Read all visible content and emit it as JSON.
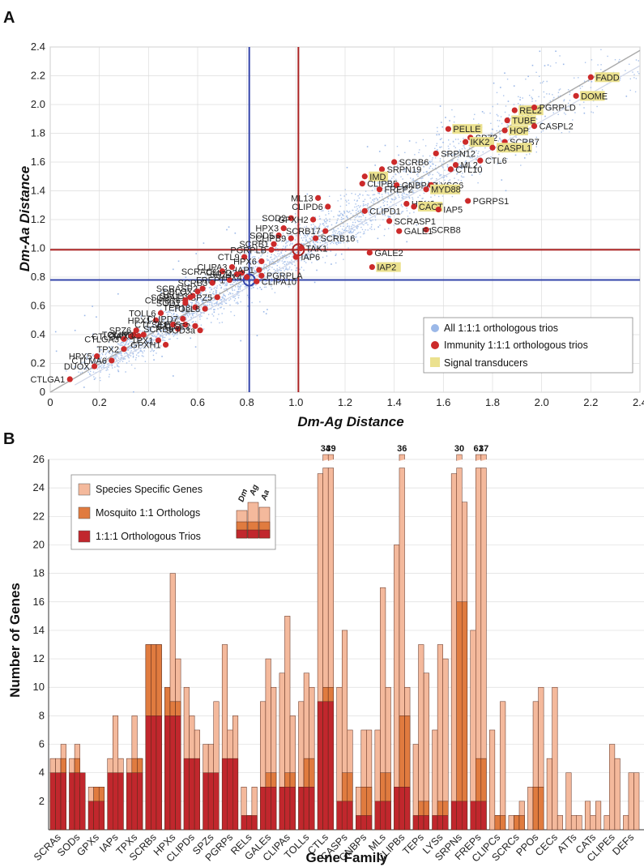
{
  "panels": {
    "a_label": "A",
    "b_label": "B"
  },
  "chart_data": [
    {
      "type": "scatter",
      "title": "",
      "xlabel": "Dm-Ag Distance",
      "ylabel": "Dm-Aa Distance",
      "xlim": [
        0,
        2.4
      ],
      "ylim": [
        0,
        2.4
      ],
      "xticks": [
        "0",
        "0.2",
        "0.4",
        "0.6",
        "0.8",
        "1.0",
        "1.2",
        "1.4",
        "1.6",
        "1.8",
        "2.0",
        "2.2",
        "2.4"
      ],
      "yticks": [
        "0",
        "0.2",
        "0.4",
        "0.6",
        "0.8",
        "1.0",
        "1.2",
        "1.4",
        "1.6",
        "1.8",
        "2.0",
        "2.2",
        "2.4"
      ],
      "grid": true,
      "legend_position": "bottom-right",
      "legend": [
        {
          "label": "All 1:1:1 orthologous trios",
          "color": "#9bb8e8"
        },
        {
          "label": "Immunity 1:1:1 orthologous trios",
          "color": "#cc2a2a"
        },
        {
          "label": "Signal transducers",
          "color": "#ebe18e"
        }
      ],
      "reference_lines": [
        {
          "axis": "x",
          "value": 0.81,
          "color": "#3344aa"
        },
        {
          "axis": "y",
          "value": 0.78,
          "color": "#3344aa"
        },
        {
          "axis": "x",
          "value": 1.01,
          "color": "#aa2222"
        },
        {
          "axis": "y",
          "value": 0.99,
          "color": "#aa2222"
        }
      ],
      "median_markers": [
        {
          "x": 0.81,
          "y": 0.78,
          "color": "#3344aa"
        },
        {
          "x": 1.01,
          "y": 0.99,
          "color": "#aa2222"
        }
      ],
      "points": [
        {
          "label": "FADD",
          "x": 2.2,
          "y": 2.19,
          "signal": true
        },
        {
          "label": "DOME",
          "x": 2.14,
          "y": 2.06,
          "signal": true
        },
        {
          "label": "REL2",
          "x": 1.89,
          "y": 1.96,
          "signal": true
        },
        {
          "label": "PGRPLD",
          "x": 1.97,
          "y": 1.98,
          "signal": false
        },
        {
          "label": "TUBE",
          "x": 1.86,
          "y": 1.89,
          "signal": true
        },
        {
          "label": "CASPL2",
          "x": 1.97,
          "y": 1.85,
          "signal": false
        },
        {
          "label": "PELLE",
          "x": 1.62,
          "y": 1.83,
          "signal": true
        },
        {
          "label": "HOP",
          "x": 1.85,
          "y": 1.82,
          "signal": true
        },
        {
          "label": "SPZ2",
          "x": 1.71,
          "y": 1.77,
          "signal": false
        },
        {
          "label": "IKK2",
          "x": 1.69,
          "y": 1.74,
          "signal": true
        },
        {
          "label": "SCRB7",
          "x": 1.85,
          "y": 1.74,
          "signal": false
        },
        {
          "label": "CASPL1",
          "x": 1.8,
          "y": 1.7,
          "signal": true
        },
        {
          "label": "SRPN12",
          "x": 1.57,
          "y": 1.66,
          "signal": false
        },
        {
          "label": "CTL6",
          "x": 1.75,
          "y": 1.61,
          "signal": false
        },
        {
          "label": "SCRB6",
          "x": 1.4,
          "y": 1.6,
          "signal": false
        },
        {
          "label": "SRPN19",
          "x": 1.35,
          "y": 1.55,
          "signal": false
        },
        {
          "label": "ML2",
          "x": 1.65,
          "y": 1.58,
          "signal": false
        },
        {
          "label": "CTL10",
          "x": 1.63,
          "y": 1.55,
          "signal": false
        },
        {
          "label": "IMD",
          "x": 1.28,
          "y": 1.5,
          "signal": true
        },
        {
          "label": "CLIPB5",
          "x": 1.27,
          "y": 1.45,
          "signal": false
        },
        {
          "label": "GNBPA2",
          "x": 1.41,
          "y": 1.44,
          "signal": false
        },
        {
          "label": "LYSC6",
          "x": 1.55,
          "y": 1.44,
          "signal": false
        },
        {
          "label": "FREP2",
          "x": 1.34,
          "y": 1.41,
          "signal": false
        },
        {
          "label": "MYD88",
          "x": 1.53,
          "y": 1.41,
          "signal": true
        },
        {
          "label": "ML13",
          "x": 1.09,
          "y": 1.35,
          "signal": false
        },
        {
          "label": "PGRPS1",
          "x": 1.7,
          "y": 1.33,
          "signal": false
        },
        {
          "label": "HPX2",
          "x": 1.45,
          "y": 1.31,
          "signal": false
        },
        {
          "label": "CACT",
          "x": 1.48,
          "y": 1.29,
          "signal": true
        },
        {
          "label": "CLIPD6",
          "x": 1.13,
          "y": 1.29,
          "signal": false
        },
        {
          "label": "IAP5",
          "x": 1.58,
          "y": 1.27,
          "signal": false
        },
        {
          "label": "CLIPD1",
          "x": 1.28,
          "y": 1.26,
          "signal": false
        },
        {
          "label": "SOD2",
          "x": 0.98,
          "y": 1.21,
          "signal": false
        },
        {
          "label": "SCRASP1",
          "x": 1.38,
          "y": 1.19,
          "signal": false
        },
        {
          "label": "GPXH2",
          "x": 1.07,
          "y": 1.2,
          "signal": false
        },
        {
          "label": "HPX3",
          "x": 0.95,
          "y": 1.14,
          "signal": false
        },
        {
          "label": "SCRB8",
          "x": 1.53,
          "y": 1.13,
          "signal": false
        },
        {
          "label": "SCRB17",
          "x": 1.12,
          "y": 1.12,
          "signal": false
        },
        {
          "label": "GALE1",
          "x": 1.42,
          "y": 1.12,
          "signal": false
        },
        {
          "label": "SOD5",
          "x": 0.93,
          "y": 1.09,
          "signal": false
        },
        {
          "label": "CLIPB9",
          "x": 0.98,
          "y": 1.07,
          "signal": false
        },
        {
          "label": "SCRB16",
          "x": 1.08,
          "y": 1.07,
          "signal": false
        },
        {
          "label": "SCRB1",
          "x": 0.91,
          "y": 1.03,
          "signal": false
        },
        {
          "label": "TAK1",
          "x": 1.02,
          "y": 1.0,
          "signal": false
        },
        {
          "label": "IAP6",
          "x": 1.0,
          "y": 0.94,
          "signal": false
        },
        {
          "label": "PGRPLB",
          "x": 0.9,
          "y": 0.99,
          "signal": false
        },
        {
          "label": "GALE2",
          "x": 1.3,
          "y": 0.97,
          "signal": false
        },
        {
          "label": "CTL9",
          "x": 0.79,
          "y": 0.94,
          "signal": false
        },
        {
          "label": "HPX6",
          "x": 0.86,
          "y": 0.91,
          "signal": false
        },
        {
          "label": "IAP2",
          "x": 1.31,
          "y": 0.87,
          "signal": true
        },
        {
          "label": "CLIPD2",
          "x": 0.78,
          "y": 0.83,
          "signal": false
        },
        {
          "label": "IAP1",
          "x": 0.85,
          "y": 0.85,
          "signal": false
        },
        {
          "label": "PGRPLA",
          "x": 0.86,
          "y": 0.81,
          "signal": false
        },
        {
          "label": "FREP1",
          "x": 0.73,
          "y": 0.78,
          "signal": false
        },
        {
          "label": "CLIPA10",
          "x": 0.84,
          "y": 0.77,
          "signal": false
        },
        {
          "label": "SCRB3",
          "x": 0.66,
          "y": 0.76,
          "signal": false
        },
        {
          "label": "TEP13",
          "x": 0.59,
          "y": 0.59,
          "signal": false
        },
        {
          "label": "SPZ5",
          "x": 0.68,
          "y": 0.66,
          "signal": false
        },
        {
          "label": "GALE3",
          "x": 0.58,
          "y": 0.67,
          "signal": false
        },
        {
          "label": "SOD1",
          "x": 0.55,
          "y": 0.62,
          "signal": false
        },
        {
          "label": "TOLL8",
          "x": 0.63,
          "y": 0.58,
          "signal": false
        },
        {
          "label": "TOLL6",
          "x": 0.45,
          "y": 0.55,
          "signal": false
        },
        {
          "label": "HPX1",
          "x": 0.43,
          "y": 0.5,
          "signal": false
        },
        {
          "label": "CLIPD7",
          "x": 0.54,
          "y": 0.51,
          "signal": false
        },
        {
          "label": "TPX5",
          "x": 0.55,
          "y": 0.47,
          "signal": false
        },
        {
          "label": "SCRB9",
          "x": 0.52,
          "y": 0.44,
          "signal": false
        },
        {
          "label": "CTLSE1",
          "x": 0.5,
          "y": 0.47,
          "signal": false
        },
        {
          "label": "CTLSE2",
          "x": 0.59,
          "y": 0.46,
          "signal": false
        },
        {
          "label": "SOD3a",
          "x": 0.61,
          "y": 0.43,
          "signal": false
        },
        {
          "label": "TOLL7",
          "x": 0.34,
          "y": 0.4,
          "signal": false
        },
        {
          "label": "CLIPD3",
          "x": 0.38,
          "y": 0.4,
          "signal": false
        },
        {
          "label": "SPZ6",
          "x": 0.35,
          "y": 0.43,
          "signal": false
        },
        {
          "label": "CTLGA2",
          "x": 0.33,
          "y": 0.39,
          "signal": false
        },
        {
          "label": "CTLGA3",
          "x": 0.3,
          "y": 0.37,
          "signal": false
        },
        {
          "label": "TPX3",
          "x": 0.36,
          "y": 0.39,
          "signal": false
        },
        {
          "label": "TPX2",
          "x": 0.3,
          "y": 0.3,
          "signal": false
        },
        {
          "label": "TPX1",
          "x": 0.44,
          "y": 0.36,
          "signal": false
        },
        {
          "label": "GPXH1",
          "x": 0.47,
          "y": 0.33,
          "signal": false
        },
        {
          "label": "HPX5",
          "x": 0.19,
          "y": 0.25,
          "signal": false
        },
        {
          "label": "CTLMA6",
          "x": 0.25,
          "y": 0.22,
          "signal": false
        },
        {
          "label": "DUOX",
          "x": 0.18,
          "y": 0.18,
          "signal": false
        },
        {
          "label": "CTLGA1",
          "x": 0.08,
          "y": 0.09,
          "signal": false
        },
        {
          "label": "CLIPA3",
          "x": 0.74,
          "y": 0.87,
          "signal": false
        },
        {
          "label": "SCRAC1",
          "x": 0.7,
          "y": 0.84,
          "signal": false
        },
        {
          "label": "SPZ4",
          "x": 0.76,
          "y": 0.82,
          "signal": false
        },
        {
          "label": "HPX4",
          "x": 0.8,
          "y": 0.8,
          "signal": false
        },
        {
          "label": "SCRASP2",
          "x": 0.62,
          "y": 0.72,
          "signal": false
        },
        {
          "label": "DBLOX",
          "x": 0.6,
          "y": 0.7,
          "signal": false
        },
        {
          "label": "SCRAL1",
          "x": 0.57,
          "y": 0.66,
          "signal": false
        },
        {
          "label": "CLIPB16",
          "x": 0.55,
          "y": 0.64,
          "signal": false
        }
      ]
    },
    {
      "type": "bar",
      "title": "",
      "xlabel": "Gene Family",
      "ylabel": "Number of Genes",
      "ylim": [
        0,
        26
      ],
      "yticks": [
        "2",
        "4",
        "6",
        "8",
        "10",
        "12",
        "14",
        "16",
        "18",
        "20",
        "22",
        "24",
        "26"
      ],
      "legend_position": "top-left",
      "legend": [
        "Species Specific Genes",
        "Mosquito 1:1 Orthologs",
        "1:1:1 Orthologous Trios"
      ],
      "species_columns": [
        "Dm",
        "Ag",
        "Aa"
      ],
      "colors": {
        "species_specific": "#f4b99c",
        "mosquito": "#e07b3f",
        "trios": "#c1272d"
      },
      "categories": [
        "SCRAs",
        "SODs",
        "GPXs",
        "IAPs",
        "TPXs",
        "SCRBs",
        "HPXs",
        "CLIPDs",
        "SPZs",
        "PGRPs",
        "RELs",
        "GALEs",
        "CLIPAs",
        "TOLLs",
        "CTLs",
        "CASPs",
        "GNBPs",
        "MLs",
        "CLIPBs",
        "TEPs",
        "LYSs",
        "SRPNs",
        "FREPs",
        "CLIPCs",
        "SCRCs",
        "PPOs",
        "CECs",
        "ATTs",
        "CATs",
        "CLIPEs",
        "DEFs"
      ],
      "totals": [
        [
          5,
          5,
          6
        ],
        [
          5,
          6,
          3
        ],
        [
          3,
          3,
          3
        ],
        [
          5,
          8,
          5
        ],
        [
          5,
          8,
          5
        ],
        [
          13,
          13,
          13
        ],
        [
          10,
          18,
          12
        ],
        [
          10,
          8,
          7
        ],
        [
          6,
          6,
          9
        ],
        [
          13,
          7,
          8
        ],
        [
          3,
          1,
          3
        ],
        [
          9,
          12,
          10
        ],
        [
          11,
          15,
          8
        ],
        [
          9,
          11,
          10
        ],
        [
          25,
          34,
          39
        ],
        [
          10,
          14,
          7
        ],
        [
          3,
          7,
          7
        ],
        [
          7,
          17,
          10
        ],
        [
          20,
          36,
          10
        ],
        [
          6,
          13,
          11
        ],
        [
          7,
          13,
          12
        ],
        [
          25,
          30,
          23
        ],
        [
          14,
          61,
          37
        ],
        [
          7,
          1,
          9
        ],
        [
          1,
          1,
          2
        ],
        [
          3,
          9,
          10
        ],
        [
          5,
          10,
          1
        ],
        [
          4,
          1,
          1
        ],
        [
          2,
          1,
          2
        ],
        [
          1,
          6,
          5
        ],
        [
          1,
          4,
          4
        ]
      ],
      "mosquito_orthologs": [
        [
          0,
          0,
          1
        ],
        [
          0,
          1,
          1
        ],
        [
          0,
          1,
          1
        ],
        [
          0,
          0,
          0
        ],
        [
          0,
          1,
          1
        ],
        [
          5,
          5,
          5
        ],
        [
          2,
          1,
          1
        ],
        [
          0,
          0,
          0
        ],
        [
          0,
          0,
          0
        ],
        [
          0,
          0,
          0
        ],
        [
          0,
          0,
          0
        ],
        [
          0,
          1,
          1
        ],
        [
          0,
          1,
          1
        ],
        [
          0,
          2,
          2
        ],
        [
          0,
          1,
          1
        ],
        [
          0,
          2,
          2
        ],
        [
          0,
          2,
          2
        ],
        [
          0,
          2,
          2
        ],
        [
          0,
          5,
          5
        ],
        [
          0,
          1,
          1
        ],
        [
          0,
          1,
          1
        ],
        [
          0,
          14,
          14
        ],
        [
          0,
          3,
          3
        ],
        [
          0,
          1,
          1
        ],
        [
          0,
          1,
          1
        ],
        [
          0,
          3,
          3
        ],
        [
          0,
          0,
          0
        ],
        [
          0,
          0,
          0
        ],
        [
          0,
          0,
          0
        ],
        [
          0,
          0,
          0
        ],
        [
          0,
          0,
          0
        ]
      ],
      "trios": [
        4,
        4,
        2,
        4,
        4,
        8,
        8,
        5,
        4,
        5,
        1,
        3,
        3,
        3,
        9,
        2,
        1,
        2,
        3,
        1,
        1,
        2,
        2,
        0,
        0,
        0,
        0,
        0,
        0,
        0,
        0
      ],
      "broken_bar_labels": [
        {
          "category": "CTLs",
          "values": [
            "34",
            "39"
          ]
        },
        {
          "category": "CLIPBs",
          "values": [
            "36"
          ]
        },
        {
          "category": "SRPNs",
          "values": [
            "30"
          ]
        },
        {
          "category": "FREPs",
          "values": [
            "61",
            "37"
          ]
        }
      ]
    }
  ]
}
